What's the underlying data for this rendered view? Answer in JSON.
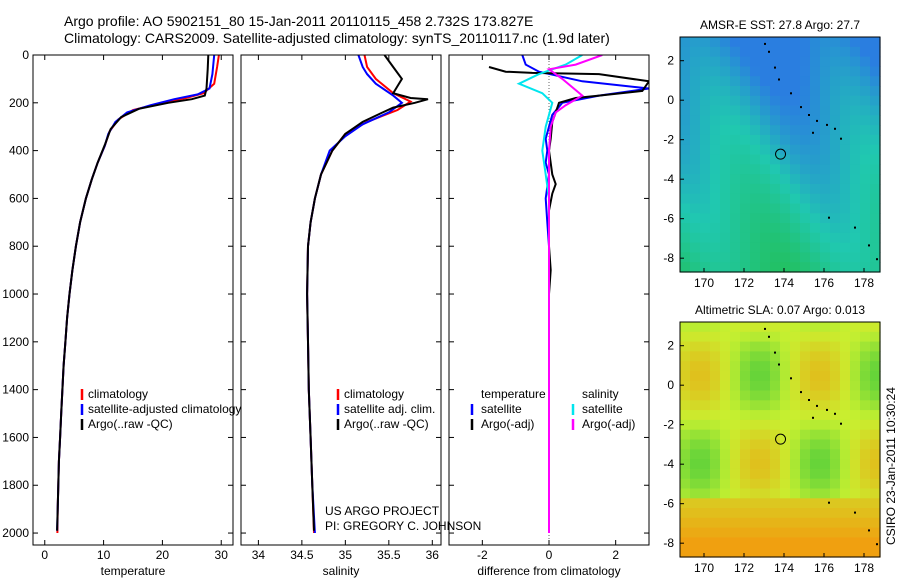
{
  "header": {
    "line1": "Argo profile: AO 5902151_80 15-Jan-2011 20110115_458 2.732S 173.827E",
    "line2": "Climatology: CARS2009. Satellite-adjusted climatology: synTS_20110117.nc (1.9d later)"
  },
  "side_label": "CSIRO 23-Jan-2011 10:30:24",
  "chart_data": [
    {
      "id": "temperature",
      "type": "line",
      "xlabel": "temperature",
      "ylim": [
        2050,
        0
      ],
      "xlim": [
        -2,
        32
      ],
      "xticks": [
        0,
        10,
        20,
        30
      ],
      "yticks": [
        0,
        200,
        400,
        600,
        800,
        1000,
        1200,
        1400,
        1600,
        1800,
        2000
      ],
      "legend": [
        "climatology",
        "satellite-adjusted climatology",
        "Argo(..raw -QC)"
      ],
      "series": [
        {
          "name": "climatology",
          "color": "#ff0000",
          "points": [
            [
              29.6,
              0
            ],
            [
              29.3,
              50
            ],
            [
              28.8,
              120
            ],
            [
              27,
              160
            ],
            [
              24,
              180
            ],
            [
              20,
              200
            ],
            [
              15,
              230
            ],
            [
              12.5,
              270
            ],
            [
              11,
              320
            ],
            [
              10.2,
              380
            ],
            [
              9,
              450
            ],
            [
              8,
              520
            ],
            [
              7,
              600
            ],
            [
              6,
              700
            ],
            [
              5.3,
              800
            ],
            [
              4.7,
              900
            ],
            [
              4.2,
              1000
            ],
            [
              3.8,
              1100
            ],
            [
              3.5,
              1200
            ],
            [
              3.2,
              1300
            ],
            [
              3,
              1400
            ],
            [
              2.8,
              1500
            ],
            [
              2.6,
              1600
            ],
            [
              2.4,
              1700
            ],
            [
              2.3,
              1800
            ],
            [
              2.2,
              1900
            ],
            [
              2.15,
              2000
            ]
          ]
        },
        {
          "name": "satellite-adjusted climatology",
          "color": "#0000ff",
          "points": [
            [
              28.8,
              0
            ],
            [
              28.5,
              80
            ],
            [
              28,
              140
            ],
            [
              26,
              165
            ],
            [
              22,
              185
            ],
            [
              18,
              210
            ],
            [
              14,
              240
            ],
            [
              12,
              280
            ],
            [
              10.8,
              330
            ],
            [
              10.2,
              380
            ],
            [
              9,
              450
            ],
            [
              8,
              520
            ],
            [
              7,
              600
            ],
            [
              6,
              700
            ],
            [
              5.3,
              800
            ],
            [
              4.7,
              900
            ],
            [
              4.2,
              1000
            ],
            [
              3.8,
              1100
            ],
            [
              3.5,
              1200
            ],
            [
              3.2,
              1300
            ],
            [
              3,
              1400
            ],
            [
              2.8,
              1500
            ],
            [
              2.6,
              1600
            ],
            [
              2.4,
              1700
            ],
            [
              2.3,
              1800
            ],
            [
              2.2,
              1900
            ],
            [
              2.1,
              1990
            ]
          ]
        },
        {
          "name": "Argo(..raw -QC)",
          "color": "#000000",
          "points": [
            [
              27.8,
              0
            ],
            [
              27.7,
              60
            ],
            [
              27.5,
              140
            ],
            [
              27.2,
              170
            ],
            [
              25,
              185
            ],
            [
              21,
              200
            ],
            [
              16,
              225
            ],
            [
              13,
              260
            ],
            [
              11.2,
              310
            ],
            [
              10.3,
              370
            ],
            [
              9,
              450
            ],
            [
              8,
              520
            ],
            [
              7,
              600
            ],
            [
              6,
              700
            ],
            [
              5.3,
              800
            ],
            [
              4.7,
              900
            ],
            [
              4.2,
              1000
            ],
            [
              3.8,
              1100
            ],
            [
              3.5,
              1200
            ],
            [
              3.2,
              1300
            ],
            [
              3,
              1400
            ],
            [
              2.8,
              1500
            ],
            [
              2.6,
              1600
            ],
            [
              2.4,
              1700
            ],
            [
              2.3,
              1800
            ],
            [
              2.2,
              1900
            ],
            [
              2.1,
              1990
            ]
          ]
        }
      ]
    },
    {
      "id": "salinity",
      "type": "line",
      "xlabel": "salinity",
      "ylim": [
        2050,
        0
      ],
      "xlim": [
        33.8,
        36.1
      ],
      "xticks": [
        34,
        34.5,
        35,
        35.5,
        36
      ],
      "legend": [
        "climatology",
        "satellite adj. clim.",
        "Argo(..raw -QC)"
      ],
      "series": [
        {
          "name": "climatology",
          "color": "#ff0000",
          "points": [
            [
              35.22,
              0
            ],
            [
              35.25,
              50
            ],
            [
              35.35,
              100
            ],
            [
              35.55,
              160
            ],
            [
              35.75,
              195
            ],
            [
              35.6,
              230
            ],
            [
              35.25,
              280
            ],
            [
              35,
              330
            ],
            [
              34.85,
              400
            ],
            [
              34.72,
              500
            ],
            [
              34.65,
              600
            ],
            [
              34.6,
              700
            ],
            [
              34.57,
              800
            ],
            [
              34.56,
              1000
            ],
            [
              34.57,
              1200
            ],
            [
              34.58,
              1400
            ],
            [
              34.6,
              1600
            ],
            [
              34.62,
              1800
            ],
            [
              34.64,
              2000
            ]
          ]
        },
        {
          "name": "satellite adj. clim.",
          "color": "#0000ff",
          "points": [
            [
              35.15,
              0
            ],
            [
              35.2,
              50
            ],
            [
              35.25,
              80
            ],
            [
              35.35,
              120
            ],
            [
              35.55,
              170
            ],
            [
              35.65,
              200
            ],
            [
              35.5,
              240
            ],
            [
              35.2,
              290
            ],
            [
              35,
              340
            ],
            [
              34.82,
              400
            ],
            [
              34.72,
              500
            ],
            [
              34.65,
              600
            ],
            [
              34.6,
              700
            ],
            [
              34.57,
              800
            ],
            [
              34.56,
              1000
            ],
            [
              34.57,
              1200
            ],
            [
              34.58,
              1400
            ],
            [
              34.6,
              1600
            ],
            [
              34.62,
              1800
            ],
            [
              34.65,
              2000
            ]
          ]
        },
        {
          "name": "Argo(..raw -QC)",
          "color": "#000000",
          "points": [
            [
              35.45,
              0
            ],
            [
              35.55,
              50
            ],
            [
              35.65,
              100
            ],
            [
              35.6,
              130
            ],
            [
              35.55,
              160
            ],
            [
              35.75,
              180
            ],
            [
              35.95,
              185
            ],
            [
              35.8,
              200
            ],
            [
              35.55,
              220
            ],
            [
              35.4,
              245
            ],
            [
              35.2,
              280
            ],
            [
              35,
              330
            ],
            [
              34.85,
              400
            ],
            [
              34.72,
              500
            ],
            [
              34.65,
              600
            ],
            [
              34.6,
              700
            ],
            [
              34.57,
              800
            ],
            [
              34.56,
              1000
            ],
            [
              34.57,
              1200
            ],
            [
              34.58,
              1400
            ],
            [
              34.6,
              1600
            ],
            [
              34.62,
              1800
            ],
            [
              34.64,
              1990
            ]
          ]
        }
      ]
    },
    {
      "id": "difference",
      "type": "line",
      "xlabel": "difference from climatology",
      "ylim": [
        2050,
        0
      ],
      "xlim": [
        -3,
        3
      ],
      "xticks": [
        -2,
        0,
        2
      ],
      "legend_header": [
        "temperature",
        "salinity"
      ],
      "legend": [
        "satellite",
        "Argo(-adj)",
        "satellite",
        "Argo(-adj)"
      ],
      "series": [
        {
          "name": "temperature satellite",
          "color": "#0000ff",
          "points": [
            [
              -0.8,
              0
            ],
            [
              -0.7,
              40
            ],
            [
              -0.3,
              70
            ],
            [
              1,
              110
            ],
            [
              3,
              140
            ],
            [
              1.5,
              170
            ],
            [
              0.4,
              200
            ],
            [
              0.1,
              250
            ],
            [
              0,
              300
            ],
            [
              -0.1,
              350
            ],
            [
              -0.05,
              400
            ],
            [
              -0.1,
              450
            ],
            [
              0,
              500
            ],
            [
              -0.1,
              600
            ],
            [
              -0.05,
              700
            ],
            [
              0,
              800
            ],
            [
              0,
              1000
            ],
            [
              0,
              1200
            ],
            [
              0,
              1500
            ],
            [
              0,
              1800
            ],
            [
              0,
              2000
            ]
          ]
        },
        {
          "name": "temperature Argo(-adj)",
          "color": "#000000",
          "points": [
            [
              -1.8,
              50
            ],
            [
              -1.3,
              70
            ],
            [
              -0.5,
              75
            ],
            [
              1.5,
              80
            ],
            [
              3,
              110
            ],
            [
              2.8,
              150
            ],
            [
              1.5,
              170
            ],
            [
              0.8,
              180
            ],
            [
              0.3,
              200
            ],
            [
              0.2,
              240
            ],
            [
              0.1,
              280
            ],
            [
              0.05,
              350
            ],
            [
              0,
              400
            ],
            [
              0.1,
              500
            ],
            [
              0.2,
              540
            ],
            [
              0.1,
              580
            ],
            [
              0,
              650
            ],
            [
              0,
              800
            ],
            [
              0.05,
              900
            ],
            [
              0,
              1000
            ],
            [
              0,
              1200
            ],
            [
              0,
              1500
            ],
            [
              0,
              1800
            ],
            [
              0,
              2000
            ]
          ]
        },
        {
          "name": "salinity satellite",
          "color": "#00e5ee",
          "points": [
            [
              1,
              0
            ],
            [
              0.5,
              40
            ],
            [
              -0.3,
              80
            ],
            [
              -0.9,
              120
            ],
            [
              -0.2,
              160
            ],
            [
              0.1,
              200
            ],
            [
              0,
              250
            ],
            [
              -0.1,
              300
            ],
            [
              -0.2,
              400
            ],
            [
              -0.1,
              500
            ],
            [
              0,
              600
            ],
            [
              0,
              800
            ],
            [
              0,
              1000
            ],
            [
              0,
              1500
            ],
            [
              0,
              2000
            ]
          ]
        },
        {
          "name": "salinity Argo(-adj)",
          "color": "#ff00ff",
          "points": [
            [
              1.6,
              0
            ],
            [
              0.8,
              40
            ],
            [
              0,
              60
            ],
            [
              0.4,
              100
            ],
            [
              1.0,
              170
            ],
            [
              0.5,
              210
            ],
            [
              0.2,
              240
            ],
            [
              0.05,
              300
            ],
            [
              0,
              400
            ],
            [
              0,
              600
            ],
            [
              0,
              800
            ],
            [
              0,
              1000
            ],
            [
              0,
              1500
            ],
            [
              0,
              2000
            ]
          ]
        }
      ]
    }
  ],
  "maps": [
    {
      "id": "sst",
      "title": "AMSR-E SST: 27.8 Argo: 27.7",
      "xticks": [
        170,
        172,
        174,
        176,
        178
      ],
      "yticks": [
        2,
        0,
        -2,
        -4,
        -6,
        -8
      ],
      "xlim": [
        168.8,
        178.8
      ],
      "ylim": [
        -8.7,
        3.2
      ],
      "marker": {
        "lon": 173.827,
        "lat": -2.732
      },
      "colors": {
        "low": "#22c060",
        "mid": "#20c8b0",
        "high": "#2a7ee0"
      }
    },
    {
      "id": "sla",
      "title": "Altimetric SLA: 0.07 Argo: 0.013",
      "xticks": [
        170,
        172,
        174,
        176,
        178
      ],
      "yticks": [
        2,
        0,
        -2,
        -4,
        -6,
        -8
      ],
      "xlim": [
        168.8,
        178.8
      ],
      "ylim": [
        -8.7,
        3.2
      ],
      "marker": {
        "lon": 173.827,
        "lat": -2.732
      },
      "colors": {
        "low": "#22c040",
        "mid": "#c8f030",
        "high": "#f0a010"
      }
    }
  ],
  "annotation": {
    "line1": "US ARGO PROJECT",
    "line2": "PI: GREGORY C. JOHNSON"
  }
}
